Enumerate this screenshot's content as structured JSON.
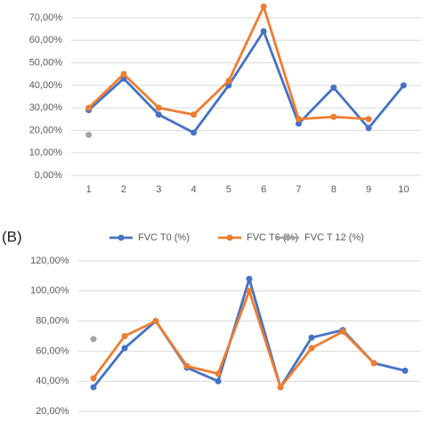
{
  "chart_data": [
    {
      "type": "line",
      "categories": [
        "1",
        "2",
        "3",
        "4",
        "5",
        "6",
        "7",
        "8",
        "9",
        "10"
      ],
      "series": [
        {
          "color": "#4472c4",
          "values": [
            29,
            43,
            27,
            19,
            40,
            64,
            23,
            39,
            21,
            40
          ]
        },
        {
          "color": "#ed7d31",
          "values": [
            30,
            45,
            30,
            27,
            42,
            75,
            25,
            26,
            25,
            null
          ]
        },
        {
          "color": "#a5a5a5",
          "values": [
            18,
            null,
            null,
            null,
            null,
            null,
            null,
            null,
            null,
            null
          ]
        }
      ],
      "ylim": [
        0,
        70
      ],
      "yticks": [
        {
          "value": 0,
          "label": "0,00%"
        },
        {
          "value": 10,
          "label": "10,00%"
        },
        {
          "value": 20,
          "label": "20,00%"
        },
        {
          "value": 30,
          "label": "30,00%"
        },
        {
          "value": 40,
          "label": "40,00%"
        },
        {
          "value": 50,
          "label": "50,00%"
        },
        {
          "value": 60,
          "label": "60,00%"
        },
        {
          "value": 70,
          "label": "70,00%"
        }
      ],
      "grid": true
    },
    {
      "type": "line",
      "panel_label": "(B)",
      "categories": [
        null,
        null,
        null,
        null,
        null,
        null,
        null,
        null,
        null,
        null,
        null
      ],
      "series": [
        {
          "name": "FVC T0 (%)",
          "color": "#4472c4",
          "values": [
            36,
            62,
            80,
            49,
            40,
            108,
            36,
            69,
            74,
            52,
            47
          ]
        },
        {
          "name": "FVC T6 (%)",
          "color": "#ed7d31",
          "values": [
            42,
            70,
            80,
            50,
            45,
            100,
            36,
            62,
            73,
            52,
            null
          ]
        },
        {
          "name": "FVC T 12 (%)",
          "color": "#a5a5a5",
          "values": [
            68,
            null,
            null,
            null,
            null,
            null,
            null,
            null,
            null,
            null,
            null
          ]
        }
      ],
      "ylim": [
        20,
        120
      ],
      "yticks": [
        {
          "value": 20,
          "label": "20,00%"
        },
        {
          "value": 40,
          "label": "40,00%"
        },
        {
          "value": 60,
          "label": "60,00%"
        },
        {
          "value": 80,
          "label": "80,00%"
        },
        {
          "value": 100,
          "label": "100,00%"
        },
        {
          "value": 120,
          "label": "120,00%"
        }
      ],
      "grid": true,
      "legend": "top"
    }
  ]
}
